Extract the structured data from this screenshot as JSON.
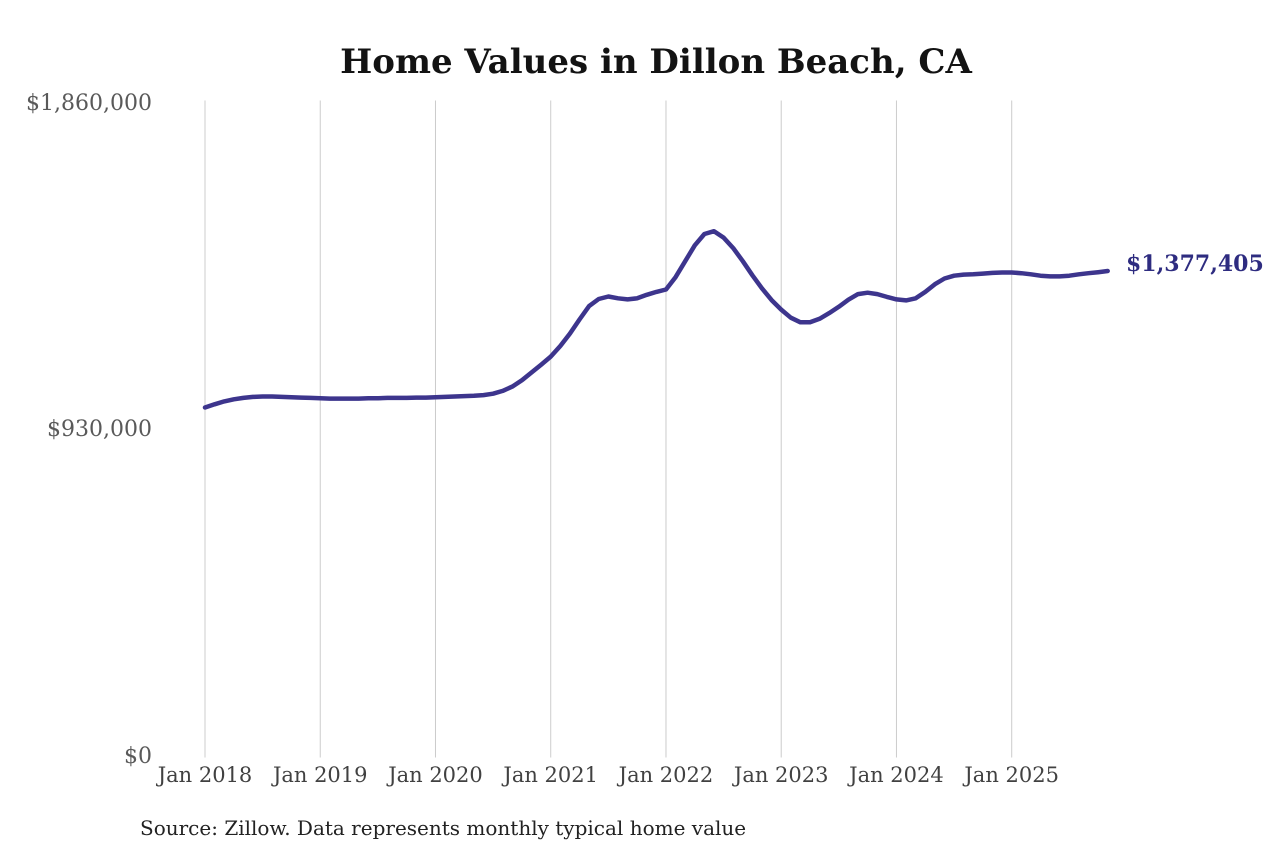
{
  "page": {
    "background_color": "#ffffff"
  },
  "chart_data": {
    "type": "line",
    "title": "Home Values in Dillon Beach, CA",
    "source_note": "Source: Zillow. Data represents monthly typical home value",
    "end_label": "$1,377,405",
    "latest_value": 1377405,
    "xlabel": "",
    "ylabel": "",
    "ylim": [
      0,
      1860000
    ],
    "grid": "vertical-only",
    "legend": "none",
    "line_color": "#3d358d",
    "end_label_color": "#2e2c80",
    "gridline_color": "#cccccc",
    "y_ticks": [
      {
        "label": "$1,860,000",
        "value": 1860000
      },
      {
        "label": "$930,000",
        "value": 930000
      },
      {
        "label": "$0",
        "value": 0
      }
    ],
    "x_ticks": [
      {
        "label": "Jan 2018",
        "month_index": 0
      },
      {
        "label": "Jan 2019",
        "month_index": 12
      },
      {
        "label": "Jan 2020",
        "month_index": 24
      },
      {
        "label": "Jan 2021",
        "month_index": 36
      },
      {
        "label": "Jan 2022",
        "month_index": 48
      },
      {
        "label": "Jan 2023",
        "month_index": 60
      },
      {
        "label": "Jan 2024",
        "month_index": 72
      },
      {
        "label": "Jan 2025",
        "month_index": 84
      }
    ],
    "series": [
      {
        "name": "Monthly typical home value",
        "points": [
          [
            "2018-01",
            991000
          ],
          [
            "2018-02",
            1000000
          ],
          [
            "2018-03",
            1008000
          ],
          [
            "2018-04",
            1014000
          ],
          [
            "2018-05",
            1018000
          ],
          [
            "2018-06",
            1021000
          ],
          [
            "2018-07",
            1022000
          ],
          [
            "2018-08",
            1022000
          ],
          [
            "2018-09",
            1021000
          ],
          [
            "2018-10",
            1020000
          ],
          [
            "2018-11",
            1019000
          ],
          [
            "2018-12",
            1018000
          ],
          [
            "2019-01",
            1017000
          ],
          [
            "2019-02",
            1016000
          ],
          [
            "2019-03",
            1016000
          ],
          [
            "2019-04",
            1016000
          ],
          [
            "2019-05",
            1016000
          ],
          [
            "2019-06",
            1017000
          ],
          [
            "2019-07",
            1017000
          ],
          [
            "2019-08",
            1018000
          ],
          [
            "2019-09",
            1018000
          ],
          [
            "2019-10",
            1018000
          ],
          [
            "2019-11",
            1019000
          ],
          [
            "2019-12",
            1019000
          ],
          [
            "2020-01",
            1020000
          ],
          [
            "2020-02",
            1021000
          ],
          [
            "2020-03",
            1022000
          ],
          [
            "2020-04",
            1023000
          ],
          [
            "2020-05",
            1024000
          ],
          [
            "2020-06",
            1026000
          ],
          [
            "2020-07",
            1030000
          ],
          [
            "2020-08",
            1038000
          ],
          [
            "2020-09",
            1050000
          ],
          [
            "2020-10",
            1068000
          ],
          [
            "2020-11",
            1090000
          ],
          [
            "2020-12",
            1112000
          ],
          [
            "2021-01",
            1135000
          ],
          [
            "2021-02",
            1165000
          ],
          [
            "2021-03",
            1200000
          ],
          [
            "2021-04",
            1240000
          ],
          [
            "2021-05",
            1278000
          ],
          [
            "2021-06",
            1298000
          ],
          [
            "2021-07",
            1305000
          ],
          [
            "2021-08",
            1300000
          ],
          [
            "2021-09",
            1297000
          ],
          [
            "2021-10",
            1300000
          ],
          [
            "2021-11",
            1310000
          ],
          [
            "2021-12",
            1318000
          ],
          [
            "2022-01",
            1325000
          ],
          [
            "2022-02",
            1360000
          ],
          [
            "2022-03",
            1405000
          ],
          [
            "2022-04",
            1450000
          ],
          [
            "2022-05",
            1482000
          ],
          [
            "2022-06",
            1490000
          ],
          [
            "2022-07",
            1472000
          ],
          [
            "2022-08",
            1442000
          ],
          [
            "2022-09",
            1405000
          ],
          [
            "2022-10",
            1365000
          ],
          [
            "2022-11",
            1328000
          ],
          [
            "2022-12",
            1295000
          ],
          [
            "2023-01",
            1268000
          ],
          [
            "2023-02",
            1245000
          ],
          [
            "2023-03",
            1232000
          ],
          [
            "2023-04",
            1232000
          ],
          [
            "2023-05",
            1242000
          ],
          [
            "2023-06",
            1258000
          ],
          [
            "2023-07",
            1276000
          ],
          [
            "2023-08",
            1296000
          ],
          [
            "2023-09",
            1312000
          ],
          [
            "2023-10",
            1316000
          ],
          [
            "2023-11",
            1312000
          ],
          [
            "2023-12",
            1304000
          ],
          [
            "2024-01",
            1297000
          ],
          [
            "2024-02",
            1294000
          ],
          [
            "2024-03",
            1300000
          ],
          [
            "2024-04",
            1318000
          ],
          [
            "2024-05",
            1340000
          ],
          [
            "2024-06",
            1356000
          ],
          [
            "2024-07",
            1364000
          ],
          [
            "2024-08",
            1367000
          ],
          [
            "2024-09",
            1368000
          ],
          [
            "2024-10",
            1370000
          ],
          [
            "2024-11",
            1372000
          ],
          [
            "2024-12",
            1373000
          ],
          [
            "2025-01",
            1373000
          ],
          [
            "2025-02",
            1371000
          ],
          [
            "2025-03",
            1368000
          ],
          [
            "2025-04",
            1364000
          ],
          [
            "2025-05",
            1362000
          ],
          [
            "2025-06",
            1362000
          ],
          [
            "2025-07",
            1364000
          ],
          [
            "2025-08",
            1368000
          ],
          [
            "2025-09",
            1371000
          ],
          [
            "2025-10",
            1374000
          ],
          [
            "2025-11",
            1377405
          ]
        ]
      }
    ]
  }
}
